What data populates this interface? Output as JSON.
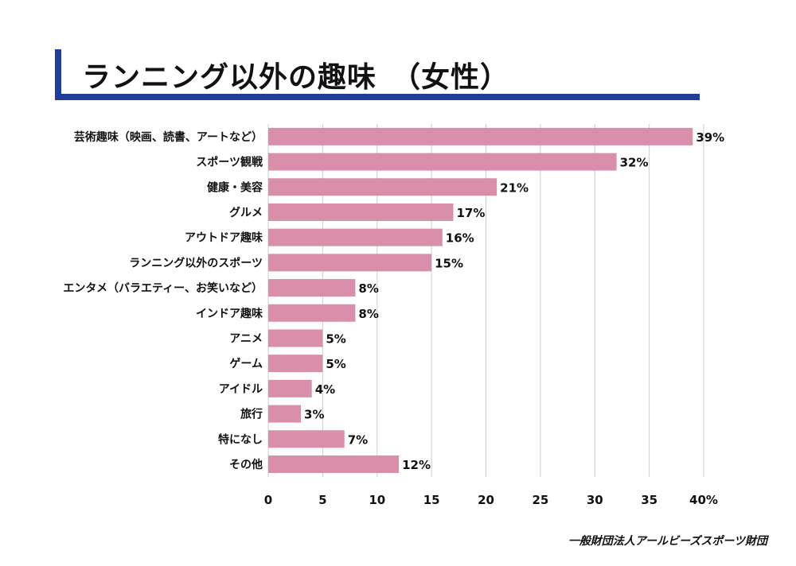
{
  "title": "ランニング以外の趣味　（女性）",
  "footer": "一般財団法人アールビーズスポーツ財団",
  "colors": {
    "accent": "#1f3d99",
    "bar": "#d98fac",
    "grid": "#cccccc"
  },
  "chart_data": {
    "type": "bar",
    "orientation": "horizontal",
    "categories": [
      "芸術趣味（映画、読書、アートなど）",
      "スポーツ観戦",
      "健康・美容",
      "グルメ",
      "アウトドア趣味",
      "ランニング以外のスポーツ",
      "エンタメ（バラエティー、お笑いなど）",
      "インドア趣味",
      "アニメ",
      "ゲーム",
      "アイドル",
      "旅行",
      "特になし",
      "その他"
    ],
    "values": [
      39,
      32,
      21,
      17,
      16,
      15,
      8,
      8,
      5,
      5,
      4,
      3,
      7,
      12
    ],
    "value_labels": [
      "39%",
      "32%",
      "21%",
      "17%",
      "16%",
      "15%",
      "8%",
      "8%",
      "5%",
      "5%",
      "4%",
      "3%",
      "7%",
      "12%"
    ],
    "x_ticks": [
      "0",
      "5",
      "10",
      "15",
      "20",
      "25",
      "30",
      "35",
      "40%"
    ],
    "xlim": [
      0,
      40
    ],
    "grid": true
  }
}
